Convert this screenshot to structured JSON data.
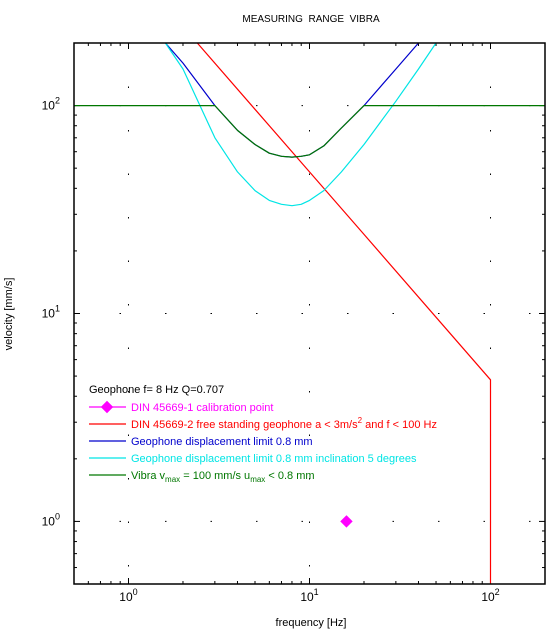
{
  "chart_data": {
    "type": "line",
    "title": "MEASURING  RANGE  VIBRA",
    "xlabel": "frequency [Hz]",
    "ylabel": "velocity [mm/s]",
    "xscale": "log",
    "yscale": "log",
    "xlim": [
      0.5,
      200
    ],
    "ylim": [
      0.5,
      200
    ],
    "grid": true,
    "legend_position": "bottom-left",
    "x_ticks": [
      {
        "value": 1,
        "base": "10",
        "exp": "0"
      },
      {
        "value": 10,
        "base": "10",
        "exp": "1"
      },
      {
        "value": 100,
        "base": "10",
        "exp": "2"
      }
    ],
    "y_ticks": [
      {
        "value": 1,
        "base": "10",
        "exp": "0"
      },
      {
        "value": 10,
        "base": "10",
        "exp": "1"
      },
      {
        "value": 100,
        "base": "10",
        "exp": "2"
      }
    ],
    "legend_header": "Geophone f= 8 Hz Q=0.707",
    "series": [
      {
        "key": "calibration",
        "marker": "diamond",
        "color": "#ff00ff",
        "label_parts": [
          [
            "t",
            "DIN 45669-1 calibration point"
          ]
        ],
        "points": [
          [
            16,
            1.0
          ]
        ]
      },
      {
        "key": "din",
        "color": "#ff0000",
        "label_parts": [
          [
            "t",
            "DIN 45669-2 free standing geophone a < 3m/s"
          ],
          [
            "sup",
            "2"
          ],
          [
            "t",
            " and f < 100 Hz"
          ]
        ],
        "points": [
          [
            2.4,
            200
          ],
          [
            5,
            96
          ],
          [
            10,
            48
          ],
          [
            20,
            24
          ],
          [
            50,
            9.6
          ],
          [
            100,
            4.8
          ],
          [
            100,
            0.5
          ]
        ]
      },
      {
        "key": "disp",
        "color": "#0000cc",
        "label_parts": [
          [
            "t",
            "Geophone displacement limit 0.8 mm"
          ]
        ],
        "points": [
          [
            1.6,
            200
          ],
          [
            2,
            160
          ],
          [
            3,
            100
          ],
          [
            4,
            76
          ],
          [
            5,
            65
          ],
          [
            6,
            59
          ],
          [
            7,
            57
          ],
          [
            8,
            56.5
          ],
          [
            9,
            57
          ],
          [
            10,
            58
          ],
          [
            12,
            64
          ],
          [
            15,
            78
          ],
          [
            20,
            100
          ],
          [
            30,
            150
          ],
          [
            40,
            200
          ]
        ]
      },
      {
        "key": "incl",
        "color": "#00e5e5",
        "label_parts": [
          [
            "t",
            "Geophone displacement limit 0.8 mm inclination 5 degrees"
          ]
        ],
        "points": [
          [
            1.6,
            200
          ],
          [
            2,
            150
          ],
          [
            3,
            70
          ],
          [
            4,
            48
          ],
          [
            5,
            39
          ],
          [
            6,
            35
          ],
          [
            7,
            33.5
          ],
          [
            8,
            33
          ],
          [
            9,
            33.5
          ],
          [
            10,
            35
          ],
          [
            12,
            39
          ],
          [
            15,
            48
          ],
          [
            20,
            65
          ],
          [
            30,
            105
          ],
          [
            40,
            150
          ],
          [
            50,
            200
          ]
        ]
      },
      {
        "key": "vibra",
        "color": "#007700",
        "label_parts": [
          [
            "t",
            "Vibra v"
          ],
          [
            "sub",
            "max"
          ],
          [
            "t",
            " = 100 mm/s u"
          ],
          [
            "sub",
            "max"
          ],
          [
            "t",
            " < 0.8 mm"
          ]
        ],
        "points": [
          [
            0.5,
            100
          ],
          [
            3,
            100
          ],
          [
            4,
            76
          ],
          [
            5,
            65
          ],
          [
            6,
            59
          ],
          [
            7,
            57
          ],
          [
            8,
            56.5
          ],
          [
            9,
            57
          ],
          [
            10,
            58
          ],
          [
            12,
            64
          ],
          [
            15,
            78
          ],
          [
            20,
            100
          ],
          [
            200,
            100
          ]
        ]
      }
    ]
  }
}
